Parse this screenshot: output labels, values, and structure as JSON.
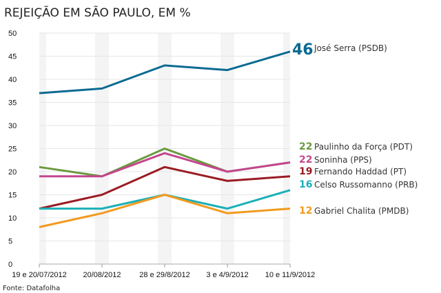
{
  "chart_data": {
    "type": "line",
    "title": "REJEIÇÃO EM SÃO PAULO, EM %",
    "source": "Fonte: Datafolha",
    "xlabel": "",
    "ylabel": "",
    "ylim": [
      0,
      50
    ],
    "yticks": [
      0,
      5,
      10,
      15,
      20,
      25,
      30,
      35,
      40,
      45,
      50
    ],
    "grid": true,
    "legend_position": "right",
    "categories": [
      "19 e 20/07/2012",
      "20/08/2012",
      "28 e 29/8/2012",
      "3 e 4/9/2012",
      "10 e 11/9/2012"
    ],
    "series": [
      {
        "name": "José Serra (PSDB)",
        "color": "#0a6a92",
        "values": [
          37,
          38,
          43,
          42,
          46
        ],
        "label": "46"
      },
      {
        "name": "Paulinho da Força (PDT)",
        "color": "#6a9a3e",
        "values": [
          21,
          19,
          25,
          20,
          22
        ],
        "label": "22"
      },
      {
        "name": "Soninha (PPS)",
        "color": "#c4468e",
        "values": [
          19,
          19,
          24,
          20,
          22
        ],
        "label": "22"
      },
      {
        "name": "Fernando Haddad (PT)",
        "color": "#9a1b22",
        "values": [
          12,
          15,
          21,
          18,
          19
        ],
        "label": "19"
      },
      {
        "name": "Celso Russomanno (PRB)",
        "color": "#1ab0b8",
        "values": [
          12,
          12,
          15,
          12,
          16
        ],
        "label": "16"
      },
      {
        "name": "Gabriel Chalita (PMDB)",
        "color": "#f39a1e",
        "values": [
          8,
          11,
          15,
          11,
          12
        ],
        "label": "12"
      }
    ]
  }
}
